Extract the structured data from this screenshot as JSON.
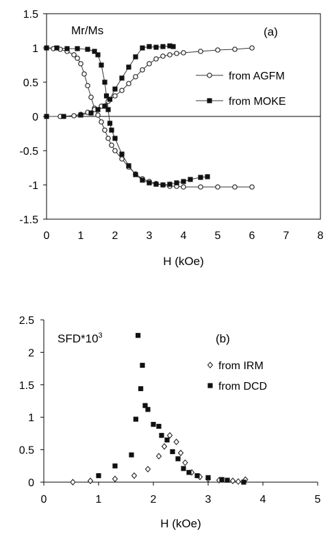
{
  "chart_data": [
    {
      "panel_label": "(a)",
      "type": "line",
      "title": "Mr/Ms",
      "xlabel": "H (kOe)",
      "ylabel": "",
      "xlim": [
        0,
        8
      ],
      "ylim": [
        -1.5,
        1.5
      ],
      "xticks": [
        "0",
        "1",
        "2",
        "3",
        "4",
        "5",
        "6",
        "7",
        "8"
      ],
      "yticks": [
        "1.5",
        "1",
        "0.5",
        "0",
        "-0.5",
        "-1",
        "-1.5"
      ],
      "grid": false,
      "legend_position": "right",
      "legend": [
        "from AGFM",
        "from MOKE"
      ],
      "series": [
        {
          "name": "from AGFM",
          "marker": "open-circle",
          "curves": [
            {
              "x": [
                0,
                0.2,
                0.4,
                0.6,
                0.8,
                0.9,
                1.0,
                1.1,
                1.2,
                1.3,
                1.4,
                1.5,
                1.6,
                1.7,
                1.8,
                1.9,
                2.0,
                2.2,
                2.4,
                2.6,
                2.8,
                3.0,
                3.2,
                3.4,
                3.6,
                3.8,
                4.0,
                4.5,
                5.0,
                5.5,
                6.0
              ],
              "y": [
                1.0,
                0.99,
                0.98,
                0.95,
                0.9,
                0.85,
                0.77,
                0.62,
                0.45,
                0.28,
                0.12,
                0.02,
                -0.08,
                -0.2,
                -0.32,
                -0.42,
                -0.5,
                -0.62,
                -0.74,
                -0.84,
                -0.91,
                -0.95,
                -0.98,
                -1.0,
                -1.02,
                -1.02,
                -1.03,
                -1.03,
                -1.03,
                -1.03,
                -1.03
              ]
            },
            {
              "x": [
                0,
                0.4,
                0.8,
                1.0,
                1.2,
                1.4,
                1.6,
                1.8,
                2.0,
                2.2,
                2.4,
                2.6,
                2.8,
                3.0,
                3.2,
                3.4,
                3.6,
                3.8,
                4.0,
                4.5,
                5.0,
                5.5,
                6.0
              ],
              "y": [
                0.0,
                0.0,
                0.01,
                0.03,
                0.06,
                0.1,
                0.15,
                0.22,
                0.3,
                0.38,
                0.48,
                0.58,
                0.68,
                0.77,
                0.84,
                0.88,
                0.9,
                0.92,
                0.93,
                0.95,
                0.97,
                0.98,
                1.0
              ]
            }
          ]
        },
        {
          "name": "from MOKE",
          "marker": "filled-square",
          "curves": [
            {
              "x": [
                0,
                0.3,
                0.6,
                0.9,
                1.2,
                1.4,
                1.5,
                1.6,
                1.7,
                1.75,
                1.8,
                1.85,
                1.9,
                2.0,
                2.2,
                2.4,
                2.6,
                2.8,
                3.0,
                3.2,
                3.4,
                3.6,
                3.8,
                4.0,
                4.2,
                4.5,
                4.7
              ],
              "y": [
                1.0,
                1.0,
                0.99,
                0.99,
                0.98,
                0.95,
                0.9,
                0.75,
                0.5,
                0.3,
                0.1,
                -0.1,
                -0.2,
                -0.32,
                -0.55,
                -0.72,
                -0.85,
                -0.93,
                -0.97,
                -0.99,
                -1.0,
                -0.99,
                -0.97,
                -0.95,
                -0.92,
                -0.89,
                -0.88
              ]
            },
            {
              "x": [
                0,
                0.5,
                1.0,
                1.3,
                1.5,
                1.7,
                1.85,
                2.0,
                2.2,
                2.4,
                2.6,
                2.8,
                3.0,
                3.2,
                3.4,
                3.6,
                3.7
              ],
              "y": [
                0.0,
                0.0,
                0.02,
                0.05,
                0.1,
                0.15,
                0.25,
                0.4,
                0.56,
                0.72,
                0.87,
                1.0,
                1.02,
                1.01,
                1.02,
                1.03,
                1.02
              ]
            }
          ]
        }
      ]
    },
    {
      "panel_label": "(b)",
      "type": "scatter",
      "title": "SFD*10",
      "title_sup": "3",
      "xlabel": "H (kOe)",
      "ylabel": "",
      "xlim": [
        0,
        5
      ],
      "ylim": [
        0,
        2.5
      ],
      "xticks": [
        "0",
        "1",
        "2",
        "3",
        "4",
        "5"
      ],
      "yticks": [
        "2.5",
        "2",
        "1.5",
        "1",
        "0.5",
        "0"
      ],
      "grid": false,
      "legend_position": "right",
      "legend": [
        "from IRM",
        "from DCD"
      ],
      "series": [
        {
          "name": "from IRM",
          "marker": "open-diamond",
          "x": [
            0.53,
            0.85,
            1.3,
            1.65,
            1.9,
            2.1,
            2.2,
            2.3,
            2.42,
            2.5,
            2.58,
            2.7,
            2.85,
            3.0,
            3.2,
            3.45,
            3.55,
            3.68
          ],
          "y": [
            0.0,
            0.02,
            0.05,
            0.1,
            0.2,
            0.4,
            0.55,
            0.72,
            0.62,
            0.45,
            0.3,
            0.15,
            0.08,
            0.05,
            0.03,
            0.02,
            0.01,
            0.04
          ]
        },
        {
          "name": "from DCD",
          "marker": "filled-square",
          "x": [
            1.0,
            1.3,
            1.6,
            1.68,
            1.72,
            1.77,
            1.8,
            1.85,
            1.9,
            2.0,
            2.1,
            2.15,
            2.25,
            2.35,
            2.45,
            2.55,
            2.65,
            2.8,
            3.0,
            3.25,
            3.35,
            3.65
          ],
          "y": [
            0.1,
            0.25,
            0.42,
            0.97,
            2.26,
            1.44,
            1.8,
            1.18,
            1.12,
            0.89,
            0.86,
            0.72,
            0.65,
            0.47,
            0.36,
            0.21,
            0.15,
            0.1,
            0.07,
            0.04,
            0.03,
            0.0
          ]
        }
      ]
    }
  ]
}
